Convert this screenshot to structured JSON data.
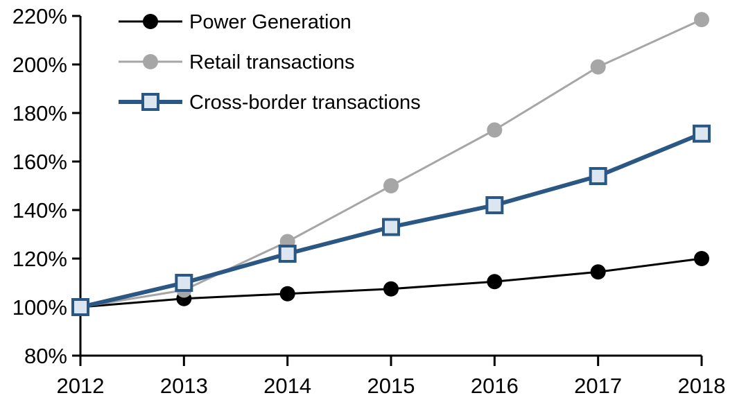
{
  "chart_data": {
    "type": "line",
    "title": "",
    "xlabel": "",
    "ylabel": "",
    "unit": "%",
    "x": [
      2012,
      2013,
      2014,
      2015,
      2016,
      2017,
      2018
    ],
    "x_labels": [
      "2012",
      "2013",
      "2014",
      "2015",
      "2016",
      "2017",
      "2018"
    ],
    "series": [
      {
        "name": "Power Generation",
        "color": "#000000",
        "marker": "circle",
        "marker_fill": "#000000",
        "line_width": 3,
        "values": [
          100,
          103.5,
          105.5,
          107.5,
          110.5,
          114.5,
          120
        ]
      },
      {
        "name": "Retail transactions",
        "color": "#A6A6A6",
        "marker": "circle",
        "marker_fill": "#A6A6A6",
        "line_width": 3,
        "values": [
          100,
          107,
          127,
          150,
          173,
          199,
          218.5
        ]
      },
      {
        "name": "Cross-border transactions",
        "color": "#2A5784",
        "marker": "square",
        "marker_fill": "#DCE6F1",
        "line_width": 6,
        "values": [
          100,
          110,
          122,
          133,
          142,
          154,
          171.5
        ]
      }
    ],
    "ylim": [
      80,
      220
    ],
    "ytick_step": 20,
    "ytick_labels": [
      "80%",
      "100%",
      "120%",
      "140%",
      "160%",
      "180%",
      "200%",
      "220%"
    ],
    "grid": false,
    "legend_position": "top-left",
    "axis_color": "#000000",
    "background": "#FFFFFF"
  }
}
